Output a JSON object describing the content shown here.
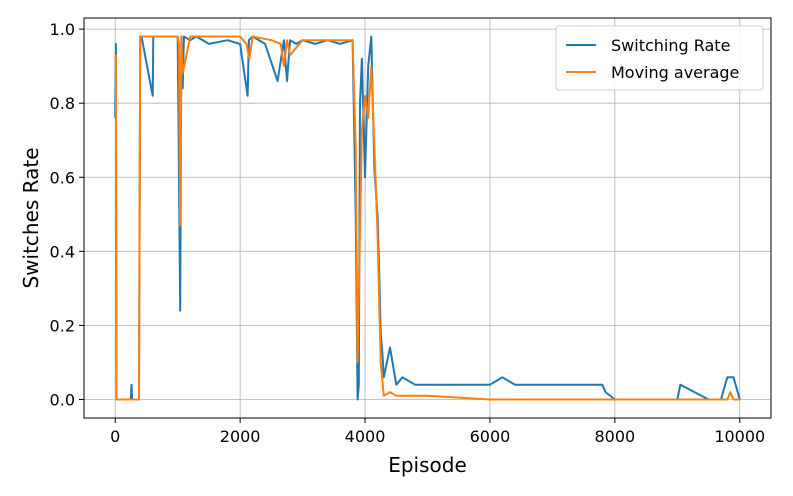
{
  "chart_data": {
    "type": "line",
    "title": "",
    "xlabel": "Episode",
    "ylabel": "Switches Rate",
    "xlim": [
      -500,
      10500
    ],
    "ylim": [
      -0.05,
      1.03
    ],
    "x_ticks": [
      0,
      2000,
      4000,
      6000,
      8000,
      10000
    ],
    "x_tick_labels": [
      "0",
      "2000",
      "4000",
      "6000",
      "8000",
      "10000"
    ],
    "y_ticks": [
      0.0,
      0.2,
      0.4,
      0.6,
      0.8,
      1.0
    ],
    "y_tick_labels": [
      "0.0",
      "0.2",
      "0.4",
      "0.6",
      "0.8",
      "1.0"
    ],
    "grid": true,
    "legend_position": "top-right",
    "series": [
      {
        "name": "Switching Rate",
        "color": "#1f77b4",
        "x": [
          0,
          10,
          20,
          40,
          60,
          80,
          250,
          260,
          270,
          380,
          400,
          420,
          600,
          610,
          620,
          1000,
          1040,
          1060,
          1080,
          1100,
          1200,
          1300,
          1500,
          1800,
          2000,
          2120,
          2140,
          2200,
          2400,
          2600,
          2700,
          2750,
          2800,
          2900,
          3000,
          3200,
          3400,
          3600,
          3800,
          3850,
          3880,
          3900,
          3920,
          3950,
          4000,
          4050,
          4100,
          4150,
          4200,
          4220,
          4250,
          4280,
          4300,
          4350,
          4400,
          4500,
          4600,
          4800,
          5000,
          5200,
          5400,
          5600,
          5800,
          6000,
          6200,
          6400,
          6600,
          6800,
          7000,
          7200,
          7400,
          7600,
          7800,
          7850,
          8000,
          8500,
          9000,
          9050,
          9500,
          9700,
          9800,
          9900,
          10000
        ],
        "values": [
          0.76,
          0.96,
          0.0,
          0.0,
          0.0,
          0.0,
          0.0,
          0.04,
          0.0,
          0.0,
          0.98,
          0.98,
          0.82,
          0.98,
          0.98,
          0.98,
          0.24,
          0.98,
          0.84,
          0.98,
          0.97,
          0.98,
          0.96,
          0.97,
          0.96,
          0.82,
          0.97,
          0.98,
          0.96,
          0.86,
          0.97,
          0.86,
          0.97,
          0.96,
          0.97,
          0.96,
          0.97,
          0.96,
          0.97,
          0.5,
          0.0,
          0.04,
          0.8,
          0.92,
          0.6,
          0.9,
          0.98,
          0.62,
          0.5,
          0.38,
          0.18,
          0.12,
          0.06,
          0.1,
          0.14,
          0.04,
          0.06,
          0.04,
          0.04,
          0.04,
          0.04,
          0.04,
          0.04,
          0.04,
          0.06,
          0.04,
          0.04,
          0.04,
          0.04,
          0.04,
          0.04,
          0.04,
          0.04,
          0.02,
          0.0,
          0.0,
          0.0,
          0.04,
          0.0,
          0.0,
          0.06,
          0.06,
          0.0
        ]
      },
      {
        "name": "Moving average",
        "color": "#ff7f0e",
        "x": [
          0,
          10,
          20,
          40,
          380,
          400,
          420,
          1000,
          1020,
          1040,
          1060,
          1080,
          1200,
          1500,
          2000,
          2100,
          2150,
          2200,
          2500,
          2650,
          2700,
          2750,
          2800,
          3000,
          3500,
          3800,
          3850,
          3880,
          3900,
          3920,
          3950,
          4000,
          4050,
          4100,
          4150,
          4200,
          4250,
          4300,
          4400,
          4500,
          4600,
          5000,
          6000,
          7000,
          8000,
          9000,
          9800,
          9850,
          9900,
          10000
        ],
        "values": [
          0.92,
          0.93,
          0.0,
          0.0,
          0.0,
          0.98,
          0.98,
          0.98,
          0.96,
          0.47,
          0.98,
          0.88,
          0.98,
          0.98,
          0.98,
          0.96,
          0.92,
          0.98,
          0.97,
          0.96,
          0.9,
          0.97,
          0.93,
          0.97,
          0.97,
          0.97,
          0.68,
          0.1,
          0.28,
          0.45,
          0.73,
          0.82,
          0.76,
          0.9,
          0.68,
          0.45,
          0.1,
          0.01,
          0.02,
          0.01,
          0.01,
          0.01,
          0.0,
          0.0,
          0.0,
          0.0,
          0.0,
          0.02,
          0.0,
          0.0
        ]
      }
    ]
  }
}
